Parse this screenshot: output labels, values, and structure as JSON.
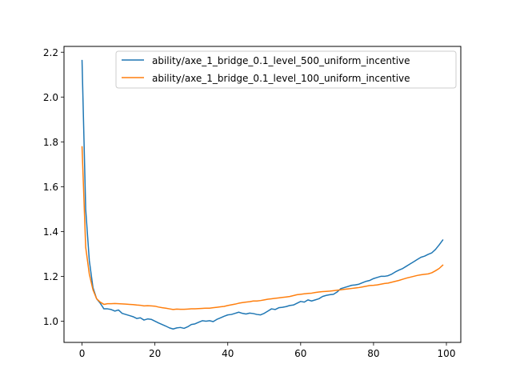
{
  "chart_data": {
    "type": "line",
    "title": "",
    "xlabel": "",
    "ylabel": "",
    "xlim": [
      -4.95,
      103.95
    ],
    "ylim": [
      0.9053,
      2.2259
    ],
    "xticks": [
      0,
      20,
      40,
      60,
      80,
      100
    ],
    "yticks": [
      1.0,
      1.2,
      1.4,
      1.6,
      1.8,
      2.0,
      2.2
    ],
    "grid": false,
    "legend_position": "upper right",
    "series": [
      {
        "name": "ability/axe_1_bridge_0.1_level_500_uniform_incentive",
        "color": "#1f77b4",
        "x": [
          0,
          1,
          2,
          3,
          4,
          5,
          6,
          7,
          8,
          9,
          10,
          11,
          12,
          13,
          14,
          15,
          16,
          17,
          18,
          19,
          20,
          21,
          22,
          23,
          24,
          25,
          26,
          27,
          28,
          29,
          30,
          31,
          32,
          33,
          34,
          35,
          36,
          37,
          38,
          39,
          40,
          41,
          42,
          43,
          44,
          45,
          46,
          47,
          48,
          49,
          50,
          51,
          52,
          53,
          54,
          55,
          56,
          57,
          58,
          59,
          60,
          61,
          62,
          63,
          64,
          65,
          66,
          67,
          68,
          69,
          70,
          71,
          72,
          73,
          74,
          75,
          76,
          77,
          78,
          79,
          80,
          81,
          82,
          83,
          84,
          85,
          86,
          87,
          88,
          89,
          90,
          91,
          92,
          93,
          94,
          95,
          96,
          97,
          98,
          99
        ],
        "y": [
          2.163,
          1.5,
          1.27,
          1.15,
          1.1,
          1.08,
          1.055,
          1.055,
          1.052,
          1.045,
          1.05,
          1.035,
          1.03,
          1.025,
          1.02,
          1.012,
          1.015,
          1.005,
          1.01,
          1.008,
          1.0,
          0.992,
          0.985,
          0.978,
          0.97,
          0.965,
          0.97,
          0.972,
          0.968,
          0.975,
          0.985,
          0.988,
          0.995,
          1.002,
          1.0,
          1.002,
          0.998,
          1.008,
          1.015,
          1.022,
          1.028,
          1.03,
          1.035,
          1.04,
          1.035,
          1.032,
          1.036,
          1.034,
          1.03,
          1.028,
          1.035,
          1.045,
          1.055,
          1.052,
          1.06,
          1.062,
          1.065,
          1.07,
          1.072,
          1.08,
          1.088,
          1.085,
          1.095,
          1.09,
          1.095,
          1.1,
          1.11,
          1.115,
          1.118,
          1.12,
          1.13,
          1.145,
          1.15,
          1.155,
          1.16,
          1.162,
          1.165,
          1.172,
          1.178,
          1.182,
          1.19,
          1.195,
          1.2,
          1.2,
          1.203,
          1.21,
          1.22,
          1.228,
          1.235,
          1.245,
          1.255,
          1.265,
          1.275,
          1.285,
          1.29,
          1.298,
          1.305,
          1.32,
          1.34,
          1.362
        ]
      },
      {
        "name": "ability/axe_1_bridge_0.1_level_100_uniform_incentive",
        "color": "#ff7f0e",
        "x": [
          0,
          1,
          2,
          3,
          4,
          5,
          6,
          7,
          8,
          9,
          10,
          11,
          12,
          13,
          14,
          15,
          16,
          17,
          18,
          19,
          20,
          21,
          22,
          23,
          24,
          25,
          26,
          27,
          28,
          29,
          30,
          31,
          32,
          33,
          34,
          35,
          36,
          37,
          38,
          39,
          40,
          41,
          42,
          43,
          44,
          45,
          46,
          47,
          48,
          49,
          50,
          51,
          52,
          53,
          54,
          55,
          56,
          57,
          58,
          59,
          60,
          61,
          62,
          63,
          64,
          65,
          66,
          67,
          68,
          69,
          70,
          71,
          72,
          73,
          74,
          75,
          76,
          77,
          78,
          79,
          80,
          81,
          82,
          83,
          84,
          85,
          86,
          87,
          88,
          89,
          90,
          91,
          92,
          93,
          94,
          95,
          96,
          97,
          98,
          99
        ],
        "y": [
          1.778,
          1.33,
          1.21,
          1.14,
          1.1,
          1.085,
          1.075,
          1.078,
          1.078,
          1.079,
          1.078,
          1.077,
          1.076,
          1.075,
          1.074,
          1.072,
          1.071,
          1.068,
          1.069,
          1.068,
          1.067,
          1.063,
          1.06,
          1.058,
          1.055,
          1.052,
          1.054,
          1.053,
          1.053,
          1.054,
          1.055,
          1.055,
          1.056,
          1.057,
          1.058,
          1.058,
          1.06,
          1.062,
          1.064,
          1.066,
          1.07,
          1.073,
          1.076,
          1.08,
          1.083,
          1.085,
          1.087,
          1.09,
          1.09,
          1.092,
          1.095,
          1.098,
          1.1,
          1.102,
          1.104,
          1.106,
          1.108,
          1.11,
          1.114,
          1.118,
          1.12,
          1.122,
          1.124,
          1.125,
          1.128,
          1.13,
          1.132,
          1.133,
          1.134,
          1.136,
          1.138,
          1.14,
          1.142,
          1.144,
          1.146,
          1.148,
          1.15,
          1.153,
          1.156,
          1.159,
          1.16,
          1.162,
          1.165,
          1.168,
          1.17,
          1.174,
          1.178,
          1.182,
          1.187,
          1.192,
          1.196,
          1.2,
          1.204,
          1.207,
          1.209,
          1.211,
          1.216,
          1.225,
          1.235,
          1.25
        ]
      }
    ]
  }
}
